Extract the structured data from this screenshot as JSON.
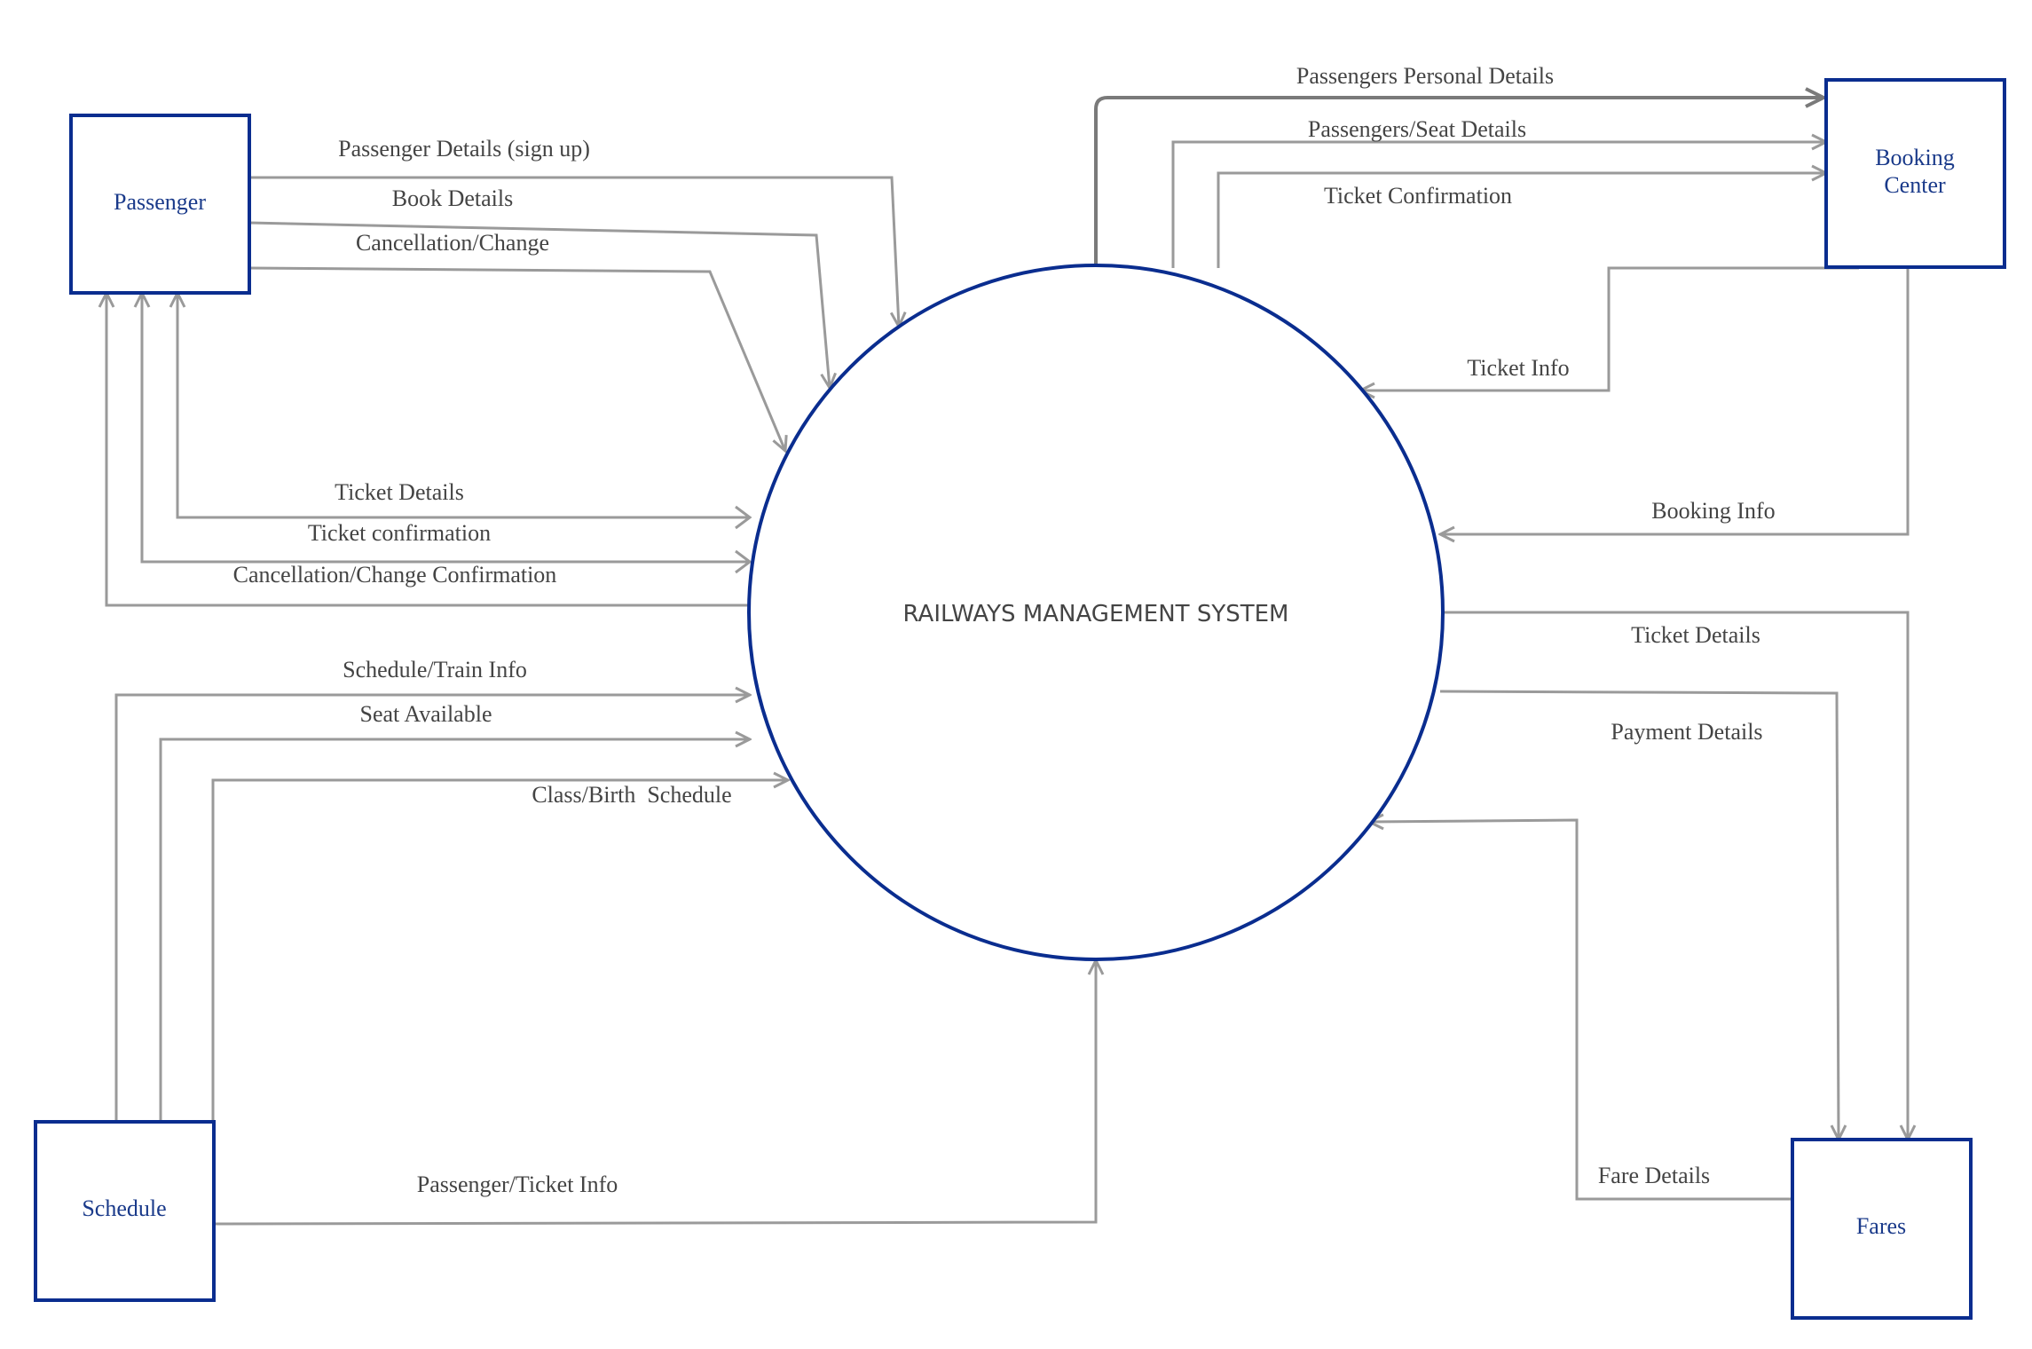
{
  "diagram": {
    "process": {
      "label": "RAILWAYS MANAGEMENT SYSTEM"
    },
    "entities": {
      "passenger": {
        "label": "Passenger"
      },
      "booking_center": {
        "line1": "Booking",
        "line2": "Center"
      },
      "schedule": {
        "label": "Schedule"
      },
      "fares": {
        "label": "Fares"
      }
    },
    "flows": {
      "passenger_details_signup": "Passenger Details (sign up)",
      "book_details": "Book Details",
      "cancellation_change": "Cancellation/Change",
      "ticket_details_passenger": "Ticket Details",
      "ticket_confirmation_passenger": "Ticket confirmation",
      "cancellation_change_confirmation": "Cancellation/Change Confirmation",
      "schedule_train_info": "Schedule/Train Info",
      "seat_available": "Seat Available",
      "class_birth_schedule": "Class/Birth  Schedule",
      "passenger_ticket_info": "Passenger/Ticket Info",
      "passengers_personal_details": "Passengers Personal Details",
      "passengers_seat_details": "Passengers/Seat Details",
      "ticket_confirmation_booking": "Ticket Confirmation",
      "ticket_info": "Ticket Info",
      "booking_info": "Booking Info",
      "ticket_details_fares": "Ticket Details",
      "payment_details": "Payment Details",
      "fare_details": "Fare Details"
    }
  }
}
